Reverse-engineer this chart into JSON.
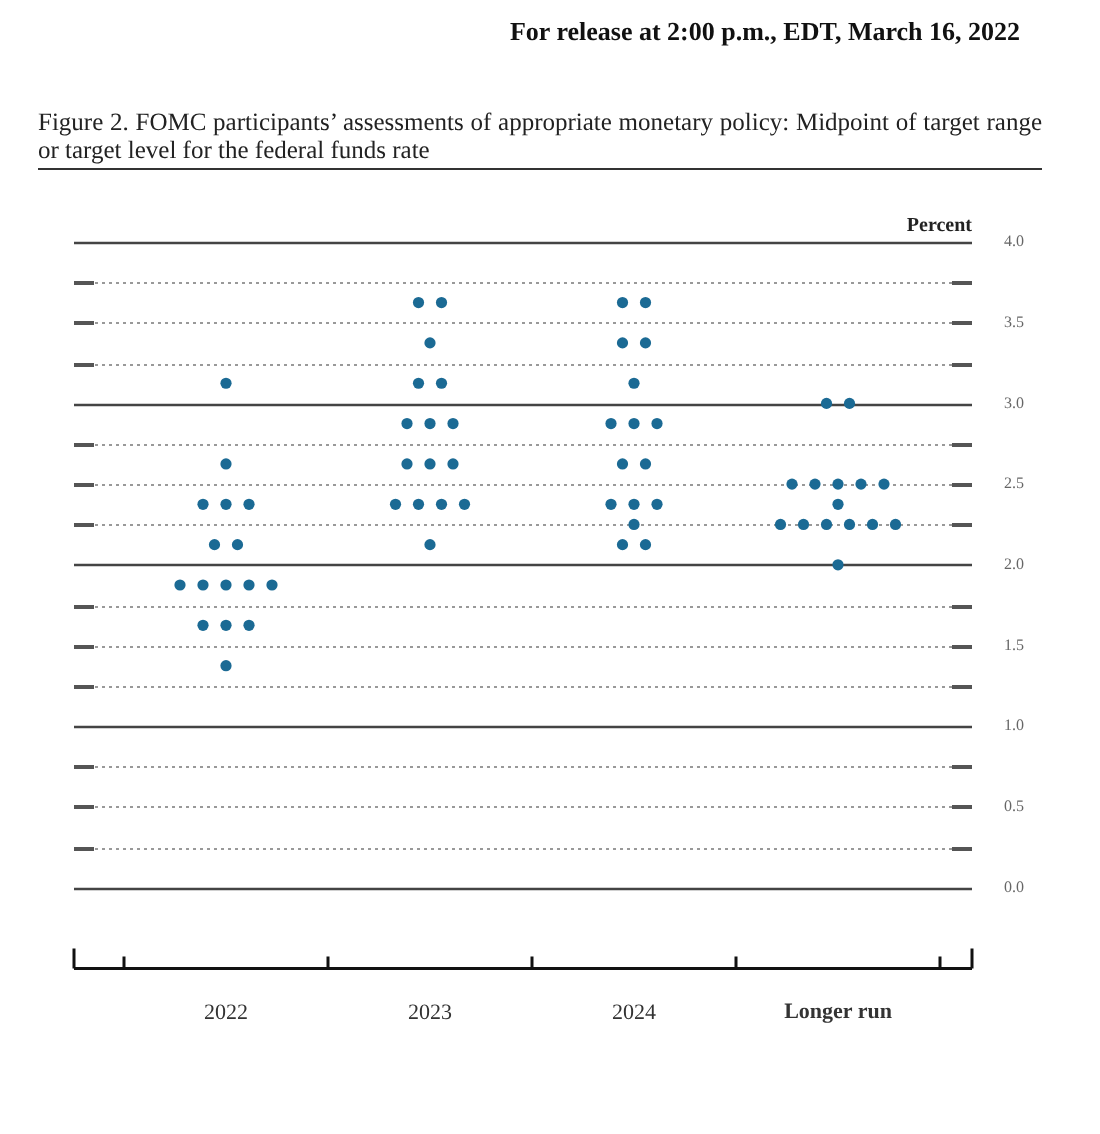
{
  "chart_data": {
    "type": "scatter",
    "title": "Figure 2.  FOMC participants’ assessments of appropriate monetary policy: Midpoint of target range or target level for the federal funds rate",
    "annotations": [
      "For release at 2:00 p.m., EDT, March 16, 2022"
    ],
    "ylabel": "Percent",
    "categories": [
      "2022",
      "2023",
      "2024",
      "Longer run"
    ],
    "series": [
      {
        "color": "#1b6a94",
        "values": [
          3.125,
          3.625,
          3.625,
          3.0
        ]
      },
      {
        "color": "#1b6a94",
        "values": [
          2.625,
          3.625,
          3.625,
          3.0
        ]
      },
      {
        "color": "#1b6a94",
        "values": [
          2.375,
          3.375,
          3.375,
          2.5
        ]
      },
      {
        "color": "#1b6a94",
        "values": [
          2.375,
          3.125,
          3.375,
          2.5
        ]
      },
      {
        "color": "#1b6a94",
        "values": [
          2.375,
          3.125,
          3.125,
          2.5
        ]
      },
      {
        "color": "#1b6a94",
        "values": [
          2.125,
          2.875,
          2.875,
          2.5
        ]
      },
      {
        "color": "#1b6a94",
        "values": [
          2.125,
          2.875,
          2.875,
          2.5
        ]
      },
      {
        "color": "#1b6a94",
        "values": [
          1.875,
          2.875,
          2.875,
          2.375
        ]
      },
      {
        "color": "#1b6a94",
        "values": [
          1.875,
          2.625,
          2.625,
          2.25
        ]
      },
      {
        "color": "#1b6a94",
        "values": [
          1.875,
          2.625,
          2.625,
          2.25
        ]
      },
      {
        "color": "#1b6a94",
        "values": [
          1.875,
          2.625,
          2.375,
          2.25
        ]
      },
      {
        "color": "#1b6a94",
        "values": [
          1.875,
          2.375,
          2.375,
          2.25
        ]
      },
      {
        "color": "#1b6a94",
        "values": [
          1.625,
          2.375,
          2.375,
          2.25
        ]
      },
      {
        "color": "#1b6a94",
        "values": [
          1.625,
          2.375,
          2.25,
          2.25
        ]
      },
      {
        "color": "#1b6a94",
        "values": [
          1.625,
          2.375,
          2.125,
          2.0
        ]
      },
      {
        "color": "#1b6a94",
        "values": [
          1.375,
          2.125,
          2.125,
          null
        ]
      }
    ],
    "ylim": [
      0,
      4
    ],
    "yticks": [
      {
        "value": 0,
        "label": "0.0"
      },
      {
        "value": 0.25,
        "label": null
      },
      {
        "value": 0.5,
        "label": "0.5"
      },
      {
        "value": 0.75,
        "label": null
      },
      {
        "value": 1,
        "label": "1.0"
      },
      {
        "value": 1.25,
        "label": null
      },
      {
        "value": 1.5,
        "label": "1.5"
      },
      {
        "value": 1.75,
        "label": null
      },
      {
        "value": 2,
        "label": "2.0"
      },
      {
        "value": 2.25,
        "label": null
      },
      {
        "value": 2.5,
        "label": "2.5"
      },
      {
        "value": 2.75,
        "label": null
      },
      {
        "value": 3,
        "label": "3.0"
      },
      {
        "value": 3.25,
        "label": null
      },
      {
        "value": 3.5,
        "label": "3.5"
      },
      {
        "value": 3.75,
        "label": null
      },
      {
        "value": 4,
        "label": "4.0"
      }
    ],
    "grid": "y",
    "legend": false,
    "marker": "circle"
  }
}
